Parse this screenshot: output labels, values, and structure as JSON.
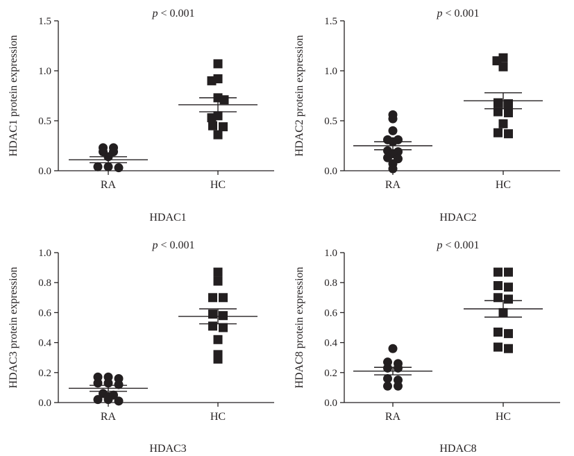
{
  "chart_data": [
    {
      "type": "scatter",
      "caption": "HDAC1",
      "ylabel": "HDAC1 protein expression",
      "annotation": {
        "italic": "p",
        "rest": " < 0.001"
      },
      "ylim": [
        0,
        1.5
      ],
      "yticks": [
        0.0,
        0.5,
        1.0,
        1.5
      ],
      "ytick_labels": [
        "0.0",
        "0.5",
        "1.0",
        "1.5"
      ],
      "categories": [
        "RA",
        "HC"
      ],
      "groups": [
        {
          "category": "RA",
          "marker": "circle",
          "mean": 0.11,
          "sem_low": 0.08,
          "sem_high": 0.14,
          "points": [
            0.23,
            0.23,
            0.19,
            0.19,
            0.14,
            0.04,
            0.04,
            0.03
          ]
        },
        {
          "category": "HC",
          "marker": "square",
          "mean": 0.66,
          "sem_low": 0.59,
          "sem_high": 0.73,
          "points": [
            1.07,
            0.92,
            0.9,
            0.73,
            0.71,
            0.55,
            0.53,
            0.45,
            0.44,
            0.36
          ]
        }
      ]
    },
    {
      "type": "scatter",
      "caption": "HDAC2",
      "ylabel": "HDAC2 protein expression",
      "annotation": {
        "italic": "p",
        "rest": " < 0.001"
      },
      "ylim": [
        0,
        1.5
      ],
      "yticks": [
        0.0,
        0.5,
        1.0,
        1.5
      ],
      "ytick_labels": [
        "0.0",
        "0.5",
        "1.0",
        "1.5"
      ],
      "categories": [
        "RA",
        "HC"
      ],
      "groups": [
        {
          "category": "RA",
          "marker": "circle",
          "mean": 0.25,
          "sem_low": 0.21,
          "sem_high": 0.29,
          "points": [
            0.56,
            0.52,
            0.4,
            0.31,
            0.31,
            0.29,
            0.2,
            0.19,
            0.17,
            0.13,
            0.12,
            0.07,
            0.02
          ]
        },
        {
          "category": "HC",
          "marker": "square",
          "mean": 0.7,
          "sem_low": 0.62,
          "sem_high": 0.78,
          "points": [
            1.13,
            1.1,
            1.04,
            0.68,
            0.67,
            0.59,
            0.58,
            0.47,
            0.38,
            0.37
          ]
        }
      ]
    },
    {
      "type": "scatter",
      "caption": "HDAC3",
      "ylabel": "HDAC3 protein expression",
      "annotation": {
        "italic": "p",
        "rest": " < 0.001"
      },
      "ylim": [
        0,
        1.0
      ],
      "yticks": [
        0.0,
        0.2,
        0.4,
        0.6,
        0.8,
        1.0
      ],
      "ytick_labels": [
        "0.0",
        "0.2",
        "0.4",
        "0.6",
        "0.8",
        "1.0"
      ],
      "categories": [
        "RA",
        "HC"
      ],
      "groups": [
        {
          "category": "RA",
          "marker": "circle",
          "mean": 0.095,
          "sem_low": 0.075,
          "sem_high": 0.115,
          "points": [
            0.17,
            0.17,
            0.16,
            0.13,
            0.13,
            0.12,
            0.06,
            0.05,
            0.04,
            0.02,
            0.02,
            0.01
          ]
        },
        {
          "category": "HC",
          "marker": "square",
          "mean": 0.575,
          "sem_low": 0.525,
          "sem_high": 0.625,
          "points": [
            0.87,
            0.81,
            0.7,
            0.7,
            0.59,
            0.58,
            0.51,
            0.5,
            0.42,
            0.32,
            0.29
          ]
        }
      ]
    },
    {
      "type": "scatter",
      "caption": "HDAC8",
      "ylabel": "HDAC8 protein expression",
      "annotation": {
        "italic": "p",
        "rest": " < 0.001"
      },
      "ylim": [
        0,
        1.0
      ],
      "yticks": [
        0.0,
        0.2,
        0.4,
        0.6,
        0.8,
        1.0
      ],
      "ytick_labels": [
        "0.0",
        "0.2",
        "0.4",
        "0.6",
        "0.8",
        "1.0"
      ],
      "categories": [
        "RA",
        "HC"
      ],
      "groups": [
        {
          "category": "RA",
          "marker": "circle",
          "mean": 0.21,
          "sem_low": 0.185,
          "sem_high": 0.235,
          "points": [
            0.36,
            0.27,
            0.26,
            0.23,
            0.23,
            0.16,
            0.15,
            0.11,
            0.11
          ]
        },
        {
          "category": "HC",
          "marker": "square",
          "mean": 0.625,
          "sem_low": 0.57,
          "sem_high": 0.68,
          "points": [
            0.87,
            0.87,
            0.78,
            0.77,
            0.7,
            0.69,
            0.6,
            0.47,
            0.46,
            0.37,
            0.36
          ]
        }
      ]
    }
  ]
}
